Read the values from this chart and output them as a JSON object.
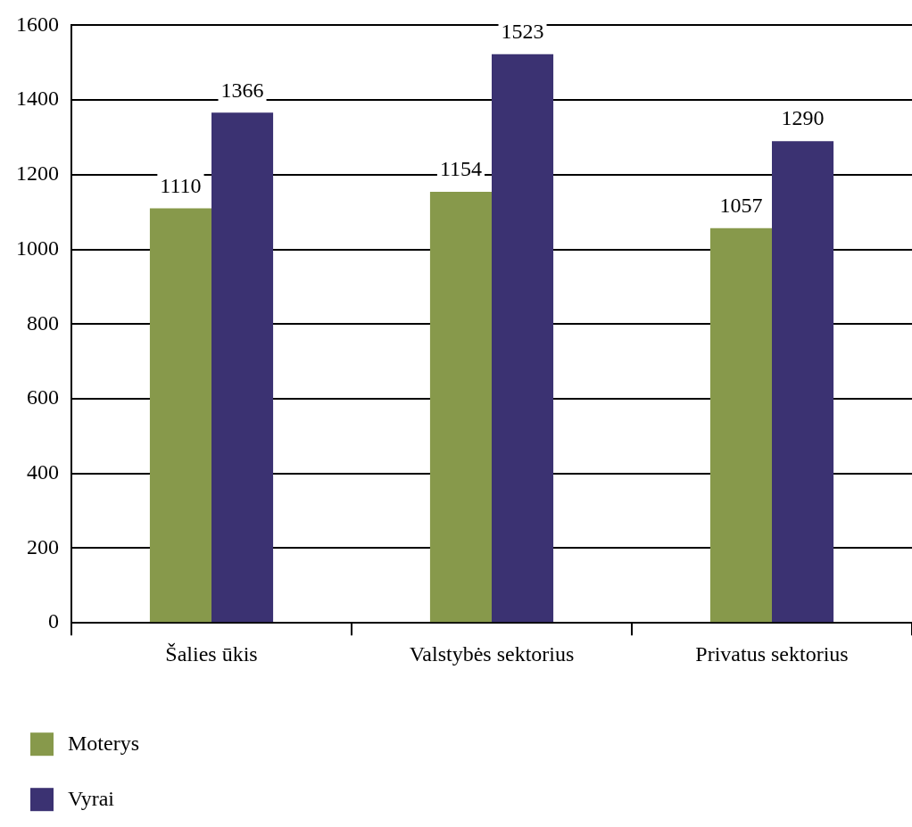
{
  "chart_data": {
    "type": "bar",
    "categories": [
      "Šalies ūkis",
      "Valstybės sektorius",
      "Privatus sektorius"
    ],
    "series": [
      {
        "name": "Moterys",
        "color": "#87994b",
        "values": [
          1110,
          1154,
          1057
        ]
      },
      {
        "name": "Vyrai",
        "color": "#3b3272",
        "values": [
          1366,
          1523,
          1290
        ]
      }
    ],
    "ylim": [
      0,
      1600
    ],
    "yticks": [
      0,
      200,
      400,
      600,
      800,
      1000,
      1200,
      1400,
      1600
    ],
    "grid": "y",
    "legend": "bottom left",
    "data_labels": true
  }
}
